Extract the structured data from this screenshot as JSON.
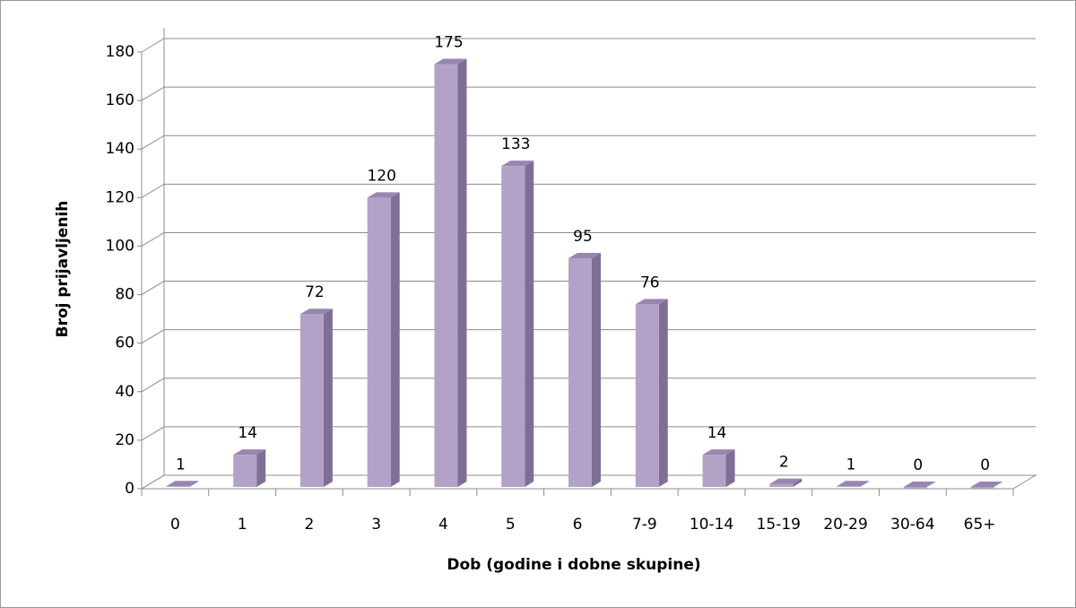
{
  "chart_data": {
    "type": "bar3d",
    "x_label": "Dob (godine i dobne skupine)",
    "y_label": "Broj prijavljenih",
    "categories": [
      "0",
      "1",
      "2",
      "3",
      "4",
      "5",
      "6",
      "7-9",
      "10-14",
      "15-19",
      "20-29",
      "30-64",
      "65+"
    ],
    "values": [
      1,
      14,
      72,
      120,
      175,
      133,
      95,
      76,
      14,
      2,
      1,
      0,
      0
    ],
    "color": "#b3a2c7",
    "ylim": [
      0,
      180
    ],
    "yticks": [
      0,
      20,
      40,
      60,
      80,
      100,
      120,
      140,
      160,
      180
    ],
    "grid": true
  }
}
